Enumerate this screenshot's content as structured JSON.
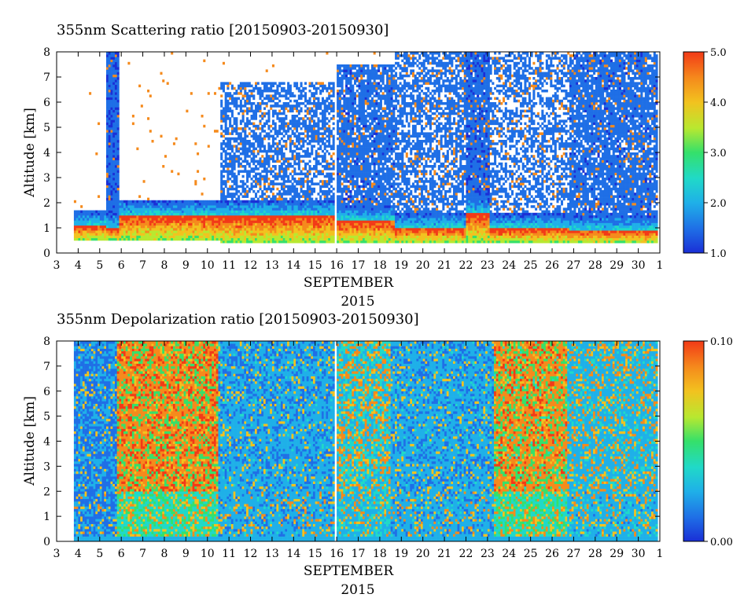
{
  "colors": {
    "scale": [
      "#1a2fd6",
      "#1f6fe6",
      "#1fb0e8",
      "#20d9c8",
      "#35e06a",
      "#b8e830",
      "#f2c21f",
      "#f58a1c",
      "#f23a17"
    ],
    "background": "#ffffff"
  },
  "chart_data": [
    {
      "type": "heatmap",
      "title": "355nm Scattering ratio [20150903-20150930]",
      "xlabel": "SEPTEMBER",
      "xlabel2": "2015",
      "ylabel": "Altitude [km]",
      "x_ticks": [
        "3",
        "4",
        "5",
        "6",
        "7",
        "8",
        "9",
        "10",
        "11",
        "12",
        "13",
        "14",
        "15",
        "16",
        "17",
        "18",
        "19",
        "20",
        "21",
        "22",
        "23",
        "24",
        "25",
        "26",
        "27",
        "28",
        "29",
        "30",
        "1"
      ],
      "y_ticks": [
        "0",
        "1",
        "2",
        "3",
        "4",
        "5",
        "6",
        "7",
        "8"
      ],
      "xlim": [
        3,
        31
      ],
      "ylim": [
        0,
        8
      ],
      "colorbar": {
        "min": 1.0,
        "max": 5.0,
        "ticks": [
          "1.0",
          "2.0",
          "3.0",
          "4.0",
          "5.0"
        ]
      },
      "profiles": [
        {
          "start": 3.85,
          "end": 5.3,
          "base": 0.5,
          "layer": 1.1,
          "cloud": 0.0,
          "cloud_lo": 0.0,
          "cloud_hi": 0.0
        },
        {
          "start": 5.3,
          "end": 5.9,
          "base": 0.5,
          "layer": 1.0,
          "cloud": 0.9,
          "cloud_lo": 1.0,
          "cloud_hi": 8.0
        },
        {
          "start": 5.9,
          "end": 10.6,
          "base": 0.5,
          "layer": 1.5,
          "cloud": 0.0,
          "cloud_lo": 0.0,
          "cloud_hi": 0.0
        },
        {
          "start": 10.6,
          "end": 15.9,
          "base": 0.4,
          "layer": 1.5,
          "cloud": 0.3,
          "cloud_lo": 1.5,
          "cloud_hi": 6.8
        },
        {
          "start": 16.0,
          "end": 18.7,
          "base": 0.4,
          "layer": 1.3,
          "cloud": 0.5,
          "cloud_lo": 1.0,
          "cloud_hi": 7.5
        },
        {
          "start": 18.7,
          "end": 22.0,
          "base": 0.4,
          "layer": 1.0,
          "cloud": 0.3,
          "cloud_lo": 1.0,
          "cloud_hi": 8.0
        },
        {
          "start": 22.0,
          "end": 23.1,
          "base": 0.4,
          "layer": 1.6,
          "cloud": 0.6,
          "cloud_lo": 2.0,
          "cloud_hi": 8.0
        },
        {
          "start": 23.1,
          "end": 26.8,
          "base": 0.4,
          "layer": 1.0,
          "cloud": 0.2,
          "cloud_lo": 0.5,
          "cloud_hi": 8.0
        },
        {
          "start": 26.8,
          "end": 30.95,
          "base": 0.4,
          "layer": 0.9,
          "cloud": 0.5,
          "cloud_lo": 0.8,
          "cloud_hi": 8.0
        }
      ]
    },
    {
      "type": "heatmap",
      "title": "355nm Depolarization ratio [20150903-20150930]",
      "xlabel": "SEPTEMBER",
      "xlabel2": "2015",
      "ylabel": "Altitude [km]",
      "x_ticks": [
        "3",
        "4",
        "5",
        "6",
        "7",
        "8",
        "9",
        "10",
        "11",
        "12",
        "13",
        "14",
        "15",
        "16",
        "17",
        "18",
        "19",
        "20",
        "21",
        "22",
        "23",
        "24",
        "25",
        "26",
        "27",
        "28",
        "29",
        "30",
        "1"
      ],
      "y_ticks": [
        "0",
        "1",
        "2",
        "3",
        "4",
        "5",
        "6",
        "7",
        "8"
      ],
      "xlim": [
        3,
        31
      ],
      "ylim": [
        0,
        8
      ],
      "colorbar": {
        "min": 0.0,
        "max": 0.1,
        "ticks": [
          "0.00",
          "0.10"
        ]
      },
      "profiles": [
        {
          "start": 3.85,
          "end": 5.8,
          "base": 0.2,
          "level": 0.25,
          "high": 0.1
        },
        {
          "start": 5.8,
          "end": 10.5,
          "base": 0.2,
          "level": 0.45,
          "high": 0.75
        },
        {
          "start": 10.5,
          "end": 15.9,
          "base": 0.2,
          "level": 0.3,
          "high": 0.1
        },
        {
          "start": 16.05,
          "end": 18.5,
          "base": 0.2,
          "level": 0.35,
          "high": 0.35
        },
        {
          "start": 18.5,
          "end": 23.3,
          "base": 0.2,
          "level": 0.3,
          "high": 0.1
        },
        {
          "start": 23.3,
          "end": 26.7,
          "base": 0.2,
          "level": 0.45,
          "high": 0.7
        },
        {
          "start": 26.7,
          "end": 30.95,
          "base": 0.2,
          "level": 0.32,
          "high": 0.25
        }
      ]
    }
  ]
}
